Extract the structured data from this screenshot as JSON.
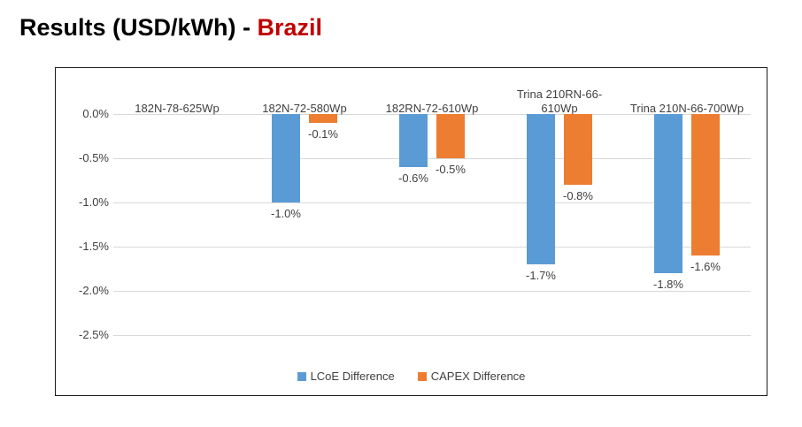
{
  "title": {
    "prefix": "Results (USD/kWh) - ",
    "highlight": "Brazil",
    "highlight_color": "#c00000"
  },
  "chart_data": {
    "type": "bar",
    "title": "Results (USD/kWh) - Brazil",
    "categories": [
      "182N-78-625Wp",
      "182N-72-580Wp",
      "182RN-72-610Wp",
      "Trina 210RN-66-610Wp",
      "Trina 210N-66-700Wp"
    ],
    "series": [
      {
        "name": "LCoE Difference",
        "color": "#5b9bd5",
        "values": [
          0.0,
          -1.0,
          -0.6,
          -1.7,
          -1.8
        ],
        "labels": [
          "",
          "-1.0%",
          "-0.6%",
          "-1.7%",
          "-1.8%"
        ]
      },
      {
        "name": "CAPEX Difference",
        "color": "#ed7d31",
        "values": [
          0.0,
          -0.1,
          -0.5,
          -0.8,
          -1.6
        ],
        "labels": [
          "",
          "-0.1%",
          "-0.5%",
          "-0.8%",
          "-1.6%"
        ]
      }
    ],
    "y_ticks": [
      "0.0%",
      "-0.5%",
      "-1.0%",
      "-1.5%",
      "-2.0%",
      "-2.5%"
    ],
    "y_tick_values": [
      0,
      -0.5,
      -1.0,
      -1.5,
      -2.0,
      -2.5
    ],
    "ylim": [
      0,
      -2.5
    ],
    "unit": "%",
    "grid": true,
    "gridline_color": "#d9d9d9",
    "label_color": "#404040",
    "legend_position": "bottom"
  }
}
